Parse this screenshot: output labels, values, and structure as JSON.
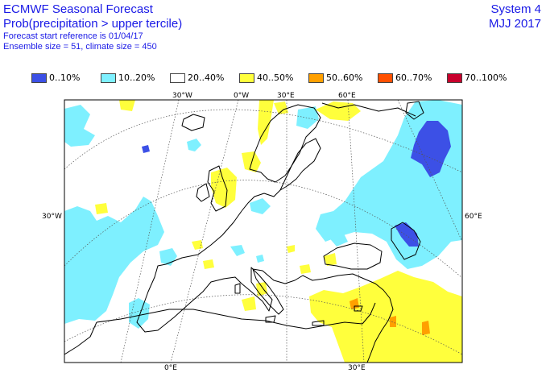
{
  "header": {
    "title": "ECMWF Seasonal Forecast",
    "subtitle": "Prob(precipitation > upper tercile)",
    "start_ref": "Forecast start reference is 01/04/17",
    "ensemble": "Ensemble size = 51, climate size = 450"
  },
  "system": {
    "name": "System 4",
    "period": "MJJ 2017"
  },
  "legend": [
    {
      "label": "0..10%",
      "color": "#3c50e6"
    },
    {
      "label": "10..20%",
      "color": "#7ef0ff"
    },
    {
      "label": "20..40%",
      "color": "#ffffff"
    },
    {
      "label": "40..50%",
      "color": "#ffff3c"
    },
    {
      "label": "50..60%",
      "color": "#ffa000"
    },
    {
      "label": "60..70%",
      "color": "#ff5000"
    },
    {
      "label": "70..100%",
      "color": "#c8002d"
    }
  ],
  "grid_labels": {
    "top_30w": "30°W",
    "top_0": "0°W",
    "top_30e": "30°E",
    "top_60e": "60°E",
    "left_30w": "30°W",
    "right_60e": "60°E",
    "bottom_0": "0°E",
    "bottom_30e": "30°E"
  }
}
